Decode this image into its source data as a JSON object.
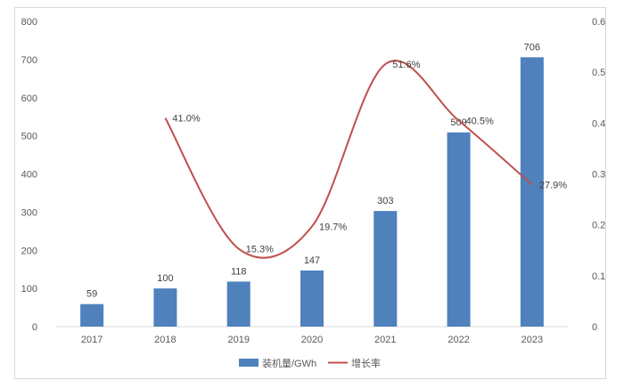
{
  "chart_data": {
    "type": "bar",
    "categories": [
      "2017",
      "2018",
      "2019",
      "2020",
      "2021",
      "2022",
      "2023"
    ],
    "series": [
      {
        "name": "装机量/GWh",
        "type": "bar",
        "axis": "left",
        "color": "#4f81bd",
        "values": [
          59,
          100,
          118,
          147,
          303,
          509,
          706
        ],
        "labels": [
          "59",
          "100",
          "118",
          "147",
          "303",
          "509",
          "706"
        ]
      },
      {
        "name": "增长率",
        "type": "line",
        "axis": "right",
        "color": "#c0504d",
        "values": [
          null,
          0.41,
          0.153,
          0.197,
          0.516,
          0.405,
          0.279
        ],
        "labels": [
          "",
          "41.0%",
          "15.3%",
          "19.7%",
          "51.6%",
          "40.5%",
          "27.9%"
        ]
      }
    ],
    "y_left": {
      "min": 0,
      "max": 800,
      "ticks": [
        "0",
        "100",
        "200",
        "300",
        "400",
        "500",
        "600",
        "700",
        "800"
      ]
    },
    "y_right": {
      "min": 0,
      "max": 0.6,
      "ticks": [
        "0",
        "0.1",
        "0.2",
        "0.3",
        "0.4",
        "0.5",
        "0.6"
      ]
    },
    "legend_position": "bottom",
    "grid": false
  }
}
